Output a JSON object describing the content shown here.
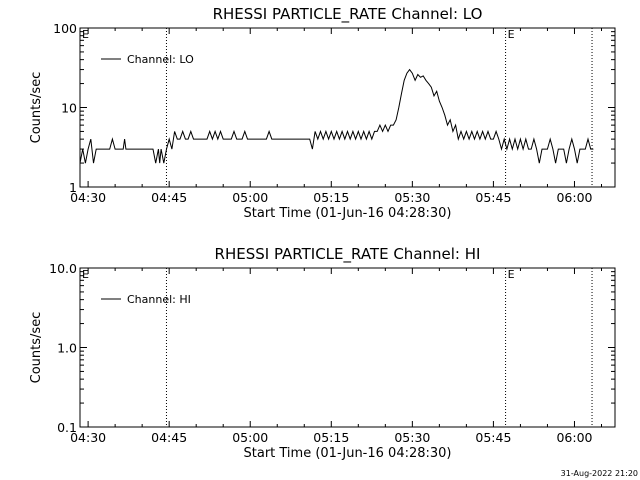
{
  "footer_timestamp": "31-Aug-2022 21:20",
  "chart_data": [
    {
      "type": "line",
      "title": "RHESSI PARTICLE_RATE Channel: LO",
      "xlabel": "Start Time (01-Jun-16 04:28:30)",
      "ylabel": "Counts/sec",
      "yscale": "log",
      "ylim": [
        1,
        100
      ],
      "xlim": [
        "04:28:30",
        "06:07:30"
      ],
      "xticks": [
        "04:30",
        "04:45",
        "05:00",
        "05:15",
        "05:30",
        "05:45",
        "06:00"
      ],
      "yticks": [
        "1",
        "10",
        "100"
      ],
      "grid": false,
      "legend_position": "top-left",
      "markers": [
        {
          "time": "04:44:30",
          "label": ""
        },
        {
          "time": "05:47:15",
          "label": "E"
        },
        {
          "time": "06:03:15",
          "label": ""
        }
      ],
      "start_marker_label": "E",
      "series": [
        {
          "name": "Channel: LO",
          "color": "#000000",
          "points": [
            [
              "04:28:30",
              2
            ],
            [
              "04:29:00",
              3
            ],
            [
              "04:29:30",
              2
            ],
            [
              "04:30:00",
              3
            ],
            [
              "04:30:30",
              4
            ],
            [
              "04:31:00",
              2
            ],
            [
              "04:31:30",
              3
            ],
            [
              "04:33:00",
              3
            ],
            [
              "04:34:00",
              3
            ],
            [
              "04:34:30",
              4
            ],
            [
              "04:35:00",
              3
            ],
            [
              "04:36:30",
              3
            ],
            [
              "04:36:45",
              4
            ],
            [
              "04:37:00",
              3
            ],
            [
              "04:42:00",
              3
            ],
            [
              "04:42:30",
              2
            ],
            [
              "04:43:00",
              3
            ],
            [
              "04:43:15",
              2
            ],
            [
              "04:43:30",
              3
            ],
            [
              "04:44:00",
              2
            ],
            [
              "04:44:30",
              3
            ],
            [
              "04:45:00",
              4
            ],
            [
              "04:45:30",
              3
            ],
            [
              "04:46:00",
              5
            ],
            [
              "04:46:30",
              4
            ],
            [
              "04:47:00",
              4
            ],
            [
              "04:47:30",
              5
            ],
            [
              "04:48:00",
              4
            ],
            [
              "04:48:30",
              4
            ],
            [
              "04:49:00",
              5
            ],
            [
              "04:49:30",
              4
            ],
            [
              "04:50:00",
              4
            ],
            [
              "04:51:00",
              4
            ],
            [
              "04:52:00",
              4
            ],
            [
              "04:52:30",
              5
            ],
            [
              "04:53:00",
              4
            ],
            [
              "04:53:30",
              5
            ],
            [
              "04:54:00",
              4
            ],
            [
              "04:54:30",
              5
            ],
            [
              "04:55:00",
              4
            ],
            [
              "04:56:30",
              4
            ],
            [
              "04:57:00",
              5
            ],
            [
              "04:57:30",
              4
            ],
            [
              "04:58:30",
              4
            ],
            [
              "04:59:00",
              5
            ],
            [
              "04:59:30",
              4
            ],
            [
              "05:03:00",
              4
            ],
            [
              "05:03:30",
              5
            ],
            [
              "05:04:00",
              4
            ],
            [
              "05:07:00",
              4
            ],
            [
              "05:11:00",
              4
            ],
            [
              "05:11:30",
              3
            ],
            [
              "05:12:00",
              5
            ],
            [
              "05:12:30",
              4
            ],
            [
              "05:13:00",
              5
            ],
            [
              "05:13:30",
              4
            ],
            [
              "05:14:00",
              5
            ],
            [
              "05:14:30",
              4
            ],
            [
              "05:15:00",
              5
            ],
            [
              "05:15:30",
              4
            ],
            [
              "05:16:00",
              5
            ],
            [
              "05:16:30",
              4
            ],
            [
              "05:17:00",
              5
            ],
            [
              "05:17:30",
              4
            ],
            [
              "05:18:00",
              5
            ],
            [
              "05:18:30",
              4
            ],
            [
              "05:19:00",
              5
            ],
            [
              "05:19:30",
              4
            ],
            [
              "05:20:00",
              5
            ],
            [
              "05:20:30",
              4
            ],
            [
              "05:21:00",
              5
            ],
            [
              "05:21:30",
              4
            ],
            [
              "05:22:00",
              5
            ],
            [
              "05:22:30",
              4
            ],
            [
              "05:23:00",
              5
            ],
            [
              "05:23:30",
              5
            ],
            [
              "05:24:00",
              6
            ],
            [
              "05:24:30",
              5
            ],
            [
              "05:25:00",
              6
            ],
            [
              "05:25:30",
              5
            ],
            [
              "05:26:00",
              6
            ],
            [
              "05:26:30",
              6
            ],
            [
              "05:27:00",
              7
            ],
            [
              "05:27:30",
              10
            ],
            [
              "05:28:00",
              15
            ],
            [
              "05:28:30",
              22
            ],
            [
              "05:29:00",
              27
            ],
            [
              "05:29:30",
              30
            ],
            [
              "05:30:00",
              27
            ],
            [
              "05:30:30",
              22
            ],
            [
              "05:31:00",
              26
            ],
            [
              "05:31:30",
              24
            ],
            [
              "05:32:00",
              25
            ],
            [
              "05:32:30",
              22
            ],
            [
              "05:33:00",
              20
            ],
            [
              "05:33:30",
              18
            ],
            [
              "05:34:00",
              14
            ],
            [
              "05:34:30",
              16
            ],
            [
              "05:35:00",
              12
            ],
            [
              "05:35:30",
              10
            ],
            [
              "05:36:00",
              8
            ],
            [
              "05:36:30",
              6
            ],
            [
              "05:37:00",
              7
            ],
            [
              "05:37:30",
              5
            ],
            [
              "05:38:00",
              6
            ],
            [
              "05:38:30",
              4
            ],
            [
              "05:39:00",
              5
            ],
            [
              "05:39:30",
              4
            ],
            [
              "05:40:00",
              5
            ],
            [
              "05:40:30",
              4
            ],
            [
              "05:41:00",
              5
            ],
            [
              "05:41:30",
              4
            ],
            [
              "05:42:00",
              5
            ],
            [
              "05:42:30",
              4
            ],
            [
              "05:43:00",
              5
            ],
            [
              "05:43:30",
              4
            ],
            [
              "05:44:00",
              5
            ],
            [
              "05:44:30",
              4
            ],
            [
              "05:45:00",
              4
            ],
            [
              "05:45:30",
              5
            ],
            [
              "05:46:00",
              4
            ],
            [
              "05:46:30",
              3
            ],
            [
              "05:47:00",
              4
            ],
            [
              "05:47:30",
              3
            ],
            [
              "05:48:00",
              4
            ],
            [
              "05:48:30",
              3
            ],
            [
              "05:49:00",
              4
            ],
            [
              "05:49:30",
              3
            ],
            [
              "05:50:00",
              4
            ],
            [
              "05:50:30",
              3
            ],
            [
              "05:51:00",
              4
            ],
            [
              "05:51:30",
              3
            ],
            [
              "05:52:00",
              3
            ],
            [
              "05:52:30",
              4
            ],
            [
              "05:53:00",
              3
            ],
            [
              "05:53:30",
              2
            ],
            [
              "05:54:00",
              3
            ],
            [
              "05:55:00",
              3
            ],
            [
              "05:55:30",
              4
            ],
            [
              "05:56:00",
              3
            ],
            [
              "05:56:30",
              2
            ],
            [
              "05:57:00",
              3
            ],
            [
              "05:58:00",
              3
            ],
            [
              "05:58:30",
              2
            ],
            [
              "05:59:00",
              3
            ],
            [
              "05:59:30",
              4
            ],
            [
              "06:00:00",
              3
            ],
            [
              "06:00:30",
              2
            ],
            [
              "06:01:00",
              3
            ],
            [
              "06:02:00",
              3
            ],
            [
              "06:02:30",
              4
            ],
            [
              "06:03:00",
              3
            ],
            [
              "06:03:30",
              3
            ]
          ]
        }
      ]
    },
    {
      "type": "line",
      "title": "RHESSI PARTICLE_RATE Channel: HI",
      "xlabel": "Start Time (01-Jun-16 04:28:30)",
      "ylabel": "Counts/sec",
      "yscale": "log",
      "ylim": [
        0.1,
        10
      ],
      "xlim": [
        "04:28:30",
        "06:07:30"
      ],
      "xticks": [
        "04:30",
        "04:45",
        "05:00",
        "05:15",
        "05:30",
        "05:45",
        "06:00"
      ],
      "yticks": [
        "0.1",
        "1.0",
        "10.0"
      ],
      "grid": false,
      "legend_position": "top-left",
      "markers": [
        {
          "time": "04:44:30",
          "label": ""
        },
        {
          "time": "05:47:15",
          "label": "E"
        },
        {
          "time": "06:03:15",
          "label": ""
        }
      ],
      "start_marker_label": "E",
      "series": [
        {
          "name": "Channel: HI",
          "color": "#000000",
          "points": []
        }
      ]
    }
  ]
}
